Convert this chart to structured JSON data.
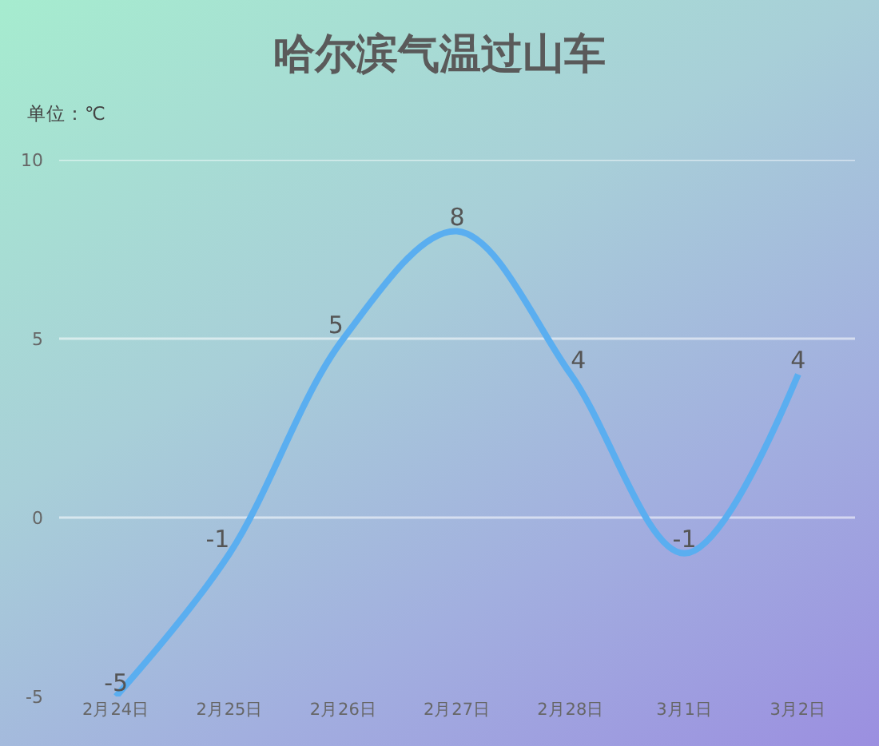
{
  "chart_data": {
    "type": "line",
    "title": "哈尔滨气温过山车",
    "ylabel": "单位：℃",
    "categories": [
      "2月24日",
      "2月25日",
      "2月26日",
      "2月27日",
      "2月28日",
      "3月1日",
      "3月2日"
    ],
    "series": [
      {
        "color": "#5aaef0",
        "values": [
          -5,
          -1,
          5,
          8,
          4,
          -1,
          4
        ]
      }
    ],
    "ylim": [
      -5,
      10
    ],
    "yticks": [
      -5,
      0,
      5,
      10
    ],
    "grid": "y",
    "data_labels": true,
    "marker": "none",
    "line_style": "solid"
  }
}
